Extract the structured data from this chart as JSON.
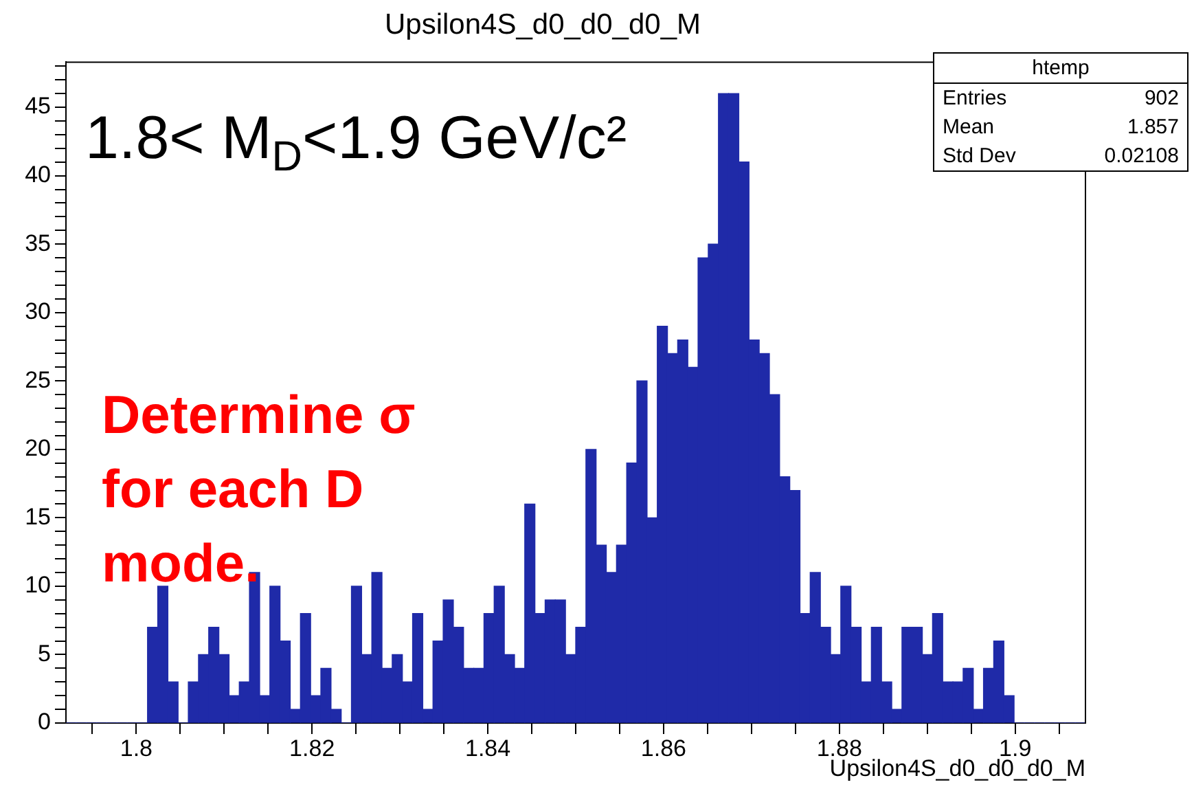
{
  "chart_data": {
    "type": "histogram",
    "title": "Upsilon4S_d0_d0_d0_M",
    "xlabel": "Upsilon4S_d0_d0_d0_M",
    "bins": [
      1.792,
      1.79316,
      1.79432,
      1.79548,
      1.79664,
      1.7978,
      1.79896,
      1.80012,
      1.80128,
      1.80244,
      1.8036,
      1.80476,
      1.80592,
      1.80708,
      1.80824,
      1.8094,
      1.81056,
      1.81172,
      1.81288,
      1.81404,
      1.8152,
      1.81636,
      1.81752,
      1.81868,
      1.81984,
      1.821,
      1.82216,
      1.82332,
      1.82448,
      1.82564,
      1.8268,
      1.82796,
      1.82912,
      1.83028,
      1.83144,
      1.8326,
      1.83376,
      1.83492,
      1.83608,
      1.83724,
      1.8384,
      1.83956,
      1.84072,
      1.84188,
      1.84304,
      1.8442,
      1.84536,
      1.84652,
      1.84768,
      1.84884,
      1.85,
      1.85116,
      1.85232,
      1.85348,
      1.85464,
      1.8558,
      1.85696,
      1.85812,
      1.85928,
      1.86044,
      1.8616,
      1.86276,
      1.86392,
      1.86508,
      1.86624,
      1.8674,
      1.86856,
      1.86972,
      1.87088,
      1.87204,
      1.8732,
      1.87436,
      1.87552,
      1.87668,
      1.87784,
      1.879,
      1.88016,
      1.88132,
      1.88248,
      1.88364,
      1.8848,
      1.88596,
      1.88712,
      1.88828,
      1.88944,
      1.8906,
      1.89176,
      1.89292,
      1.89408,
      1.89524,
      1.8964,
      1.89756,
      1.89872,
      1.89988,
      1.90104,
      1.9022,
      1.90336,
      1.90452,
      1.90568,
      1.90684,
      1.908
    ],
    "values": [
      0,
      0,
      0,
      0,
      0,
      0,
      0,
      0,
      7,
      10,
      3,
      0,
      3,
      5,
      7,
      5,
      2,
      3,
      11,
      2,
      10,
      6,
      1,
      8,
      2,
      4,
      1,
      0,
      10,
      5,
      11,
      4,
      5,
      3,
      8,
      1,
      6,
      9,
      7,
      4,
      4,
      8,
      10,
      5,
      4,
      16,
      8,
      9,
      9,
      5,
      7,
      20,
      13,
      11,
      13,
      19,
      25,
      15,
      29,
      27,
      28,
      26,
      34,
      35,
      46,
      46,
      41,
      28,
      27,
      24,
      18,
      17,
      8,
      11,
      7,
      5,
      10,
      7,
      3,
      7,
      3,
      1,
      7,
      7,
      5,
      8,
      3,
      3,
      4,
      1,
      4,
      6,
      2,
      0,
      0,
      0,
      0,
      0,
      0,
      0
    ],
    "color": "#1f2aa8",
    "xlim": [
      1.792,
      1.908
    ],
    "xticks": [
      {
        "value": 1.795,
        "label": null
      },
      1.8,
      {
        "value": 1.805,
        "label": null
      },
      {
        "value": 1.81,
        "label": null
      },
      {
        "value": 1.815,
        "label": null
      },
      1.82,
      {
        "value": 1.825,
        "label": null
      },
      {
        "value": 1.83,
        "label": null
      },
      {
        "value": 1.835,
        "label": null
      },
      1.84,
      {
        "value": 1.845,
        "label": null
      },
      {
        "value": 1.85,
        "label": null
      },
      {
        "value": 1.855,
        "label": null
      },
      1.86,
      {
        "value": 1.865,
        "label": null
      },
      {
        "value": 1.87,
        "label": null
      },
      {
        "value": 1.875,
        "label": null
      },
      1.88,
      {
        "value": 1.885,
        "label": null
      },
      {
        "value": 1.89,
        "label": null
      },
      {
        "value": 1.895,
        "label": null
      },
      1.9,
      {
        "value": 1.905,
        "label": null
      }
    ],
    "ylim": [
      0,
      48.3
    ],
    "yticks": [
      0,
      {
        "value": 1,
        "label": null
      },
      {
        "value": 2,
        "label": null
      },
      {
        "value": 3,
        "label": null
      },
      {
        "value": 4,
        "label": null
      },
      5,
      {
        "value": 6,
        "label": null
      },
      {
        "value": 7,
        "label": null
      },
      {
        "value": 8,
        "label": null
      },
      {
        "value": 9,
        "label": null
      },
      10,
      {
        "value": 11,
        "label": null
      },
      {
        "value": 12,
        "label": null
      },
      {
        "value": 13,
        "label": null
      },
      {
        "value": 14,
        "label": null
      },
      15,
      {
        "value": 16,
        "label": null
      },
      {
        "value": 17,
        "label": null
      },
      {
        "value": 18,
        "label": null
      },
      {
        "value": 19,
        "label": null
      },
      20,
      {
        "value": 21,
        "label": null
      },
      {
        "value": 22,
        "label": null
      },
      {
        "value": 23,
        "label": null
      },
      {
        "value": 24,
        "label": null
      },
      25,
      {
        "value": 26,
        "label": null
      },
      {
        "value": 27,
        "label": null
      },
      {
        "value": 28,
        "label": null
      },
      {
        "value": 29,
        "label": null
      },
      30,
      {
        "value": 31,
        "label": null
      },
      {
        "value": 32,
        "label": null
      },
      {
        "value": 33,
        "label": null
      },
      {
        "value": 34,
        "label": null
      },
      35,
      {
        "value": 36,
        "label": null
      },
      {
        "value": 37,
        "label": null
      },
      {
        "value": 38,
        "label": null
      },
      {
        "value": 39,
        "label": null
      },
      40,
      {
        "value": 41,
        "label": null
      },
      {
        "value": 42,
        "label": null
      },
      {
        "value": 43,
        "label": null
      },
      {
        "value": 44,
        "label": null
      },
      45,
      {
        "value": 46,
        "label": null
      },
      {
        "value": 47,
        "label": null
      },
      {
        "value": 48,
        "label": null
      }
    ],
    "annotations": [
      "htemp",
      "Entries",
      "902",
      "Mean",
      "1.857",
      "Std Dev",
      "0.02108",
      "1.8< M$_{D}$<1.9 GeV/c²",
      "Determine σ\nfor each D\nmode."
    ]
  }
}
